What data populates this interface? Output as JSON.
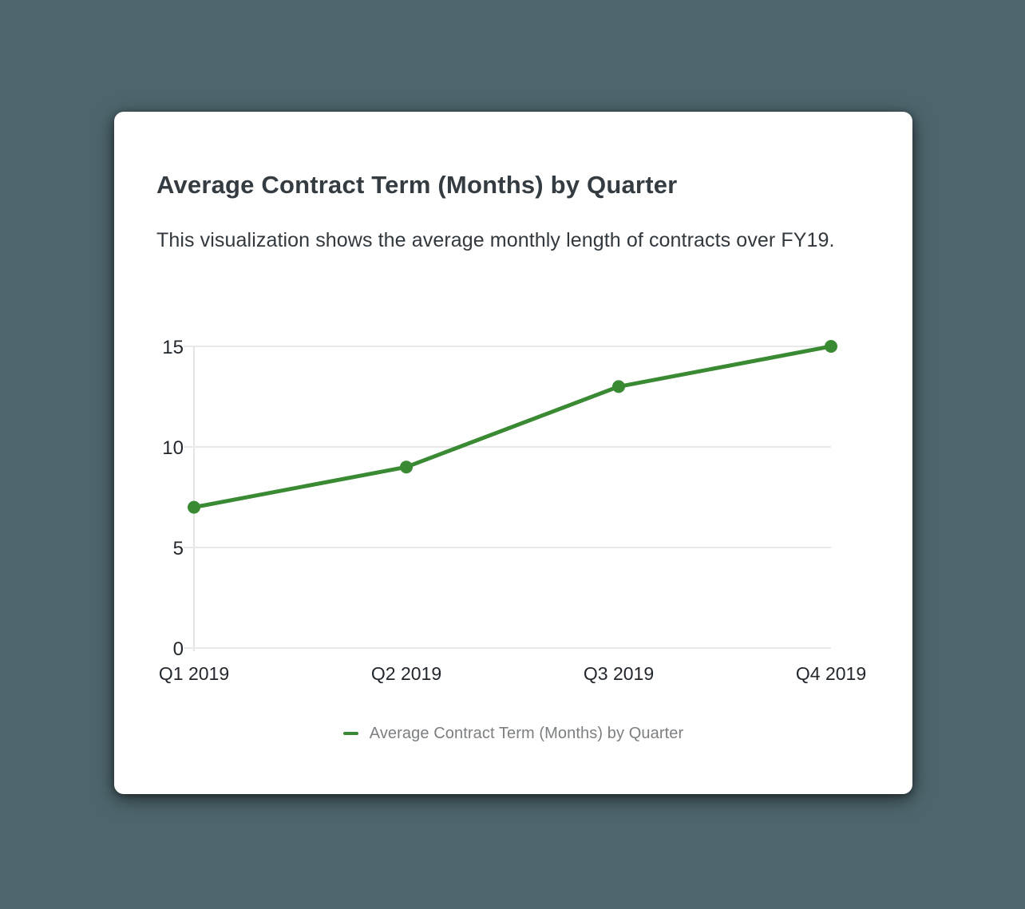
{
  "page": {
    "background_color": "#4d666d",
    "card_color": "#ffffff"
  },
  "card": {
    "title": "Average Contract Term (Months) by Quarter",
    "description": "This visualization shows the average monthly length of contracts over FY19."
  },
  "chart_data": {
    "type": "line",
    "title": "Average Contract Term (Months) by Quarter",
    "categories": [
      "Q1 2019",
      "Q2 2019",
      "Q3 2019",
      "Q4 2019"
    ],
    "series": [
      {
        "name": "Average Contract Term (Months) by Quarter",
        "values": [
          7,
          9,
          13,
          15
        ]
      }
    ],
    "xlabel": "",
    "ylabel": "",
    "ylim": [
      0,
      15
    ],
    "yticks": [
      0,
      5,
      10,
      15
    ],
    "grid": true,
    "legend_position": "bottom",
    "line_color": "#3a8a34",
    "gridline_color": "#e9e9e9",
    "axis_line_color": "#e4e4e4"
  },
  "legend": {
    "label": "Average Contract Term (Months) by Quarter"
  }
}
